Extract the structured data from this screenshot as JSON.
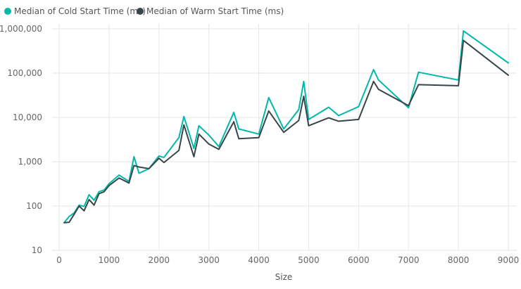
{
  "chart_data": {
    "type": "line",
    "title": "",
    "xlabel": "Size",
    "ylabel": "",
    "y_scale": "log",
    "xlim": [
      0,
      9000
    ],
    "ylim": [
      10,
      1000000
    ],
    "x_ticks": [
      0,
      1000,
      2000,
      3000,
      4000,
      5000,
      6000,
      7000,
      8000,
      9000
    ],
    "x_tick_labels": [
      "0",
      "1000",
      "2000",
      "3000",
      "4000",
      "5000",
      "6000",
      "7000",
      "8000",
      "9000"
    ],
    "y_ticks": [
      10,
      100,
      1000,
      10000,
      100000,
      1000000
    ],
    "y_tick_labels": [
      "10",
      "100",
      "1,000",
      "10,000",
      "100,000",
      "1,000,000"
    ],
    "grid": true,
    "legend_position": "top-left",
    "series": [
      {
        "name": "Median of Cold Start Time (ms)",
        "color": "#01B8AA",
        "points": [
          [
            100,
            42
          ],
          [
            200,
            58
          ],
          [
            300,
            70
          ],
          [
            400,
            105
          ],
          [
            500,
            98
          ],
          [
            600,
            180
          ],
          [
            700,
            135
          ],
          [
            800,
            210
          ],
          [
            900,
            230
          ],
          [
            1000,
            320
          ],
          [
            1100,
            400
          ],
          [
            1200,
            500
          ],
          [
            1400,
            360
          ],
          [
            1500,
            1300
          ],
          [
            1600,
            550
          ],
          [
            1800,
            700
          ],
          [
            2000,
            1350
          ],
          [
            2100,
            1250
          ],
          [
            2400,
            3500
          ],
          [
            2500,
            10500
          ],
          [
            2700,
            2000
          ],
          [
            2800,
            6500
          ],
          [
            3000,
            4000
          ],
          [
            3200,
            2200
          ],
          [
            3500,
            13000
          ],
          [
            3600,
            5500
          ],
          [
            4000,
            4200
          ],
          [
            4200,
            28000
          ],
          [
            4500,
            5500
          ],
          [
            4800,
            15000
          ],
          [
            4900,
            65000
          ],
          [
            5000,
            9000
          ],
          [
            5400,
            17000
          ],
          [
            5600,
            11000
          ],
          [
            6000,
            17500
          ],
          [
            6300,
            120000
          ],
          [
            6400,
            70000
          ],
          [
            7000,
            16500
          ],
          [
            7200,
            105000
          ],
          [
            8000,
            70000
          ],
          [
            8100,
            900000
          ],
          [
            9000,
            170000
          ]
        ]
      },
      {
        "name": "Median of Warm Start Time (ms)",
        "color": "#374649",
        "points": [
          [
            100,
            42
          ],
          [
            200,
            43
          ],
          [
            300,
            65
          ],
          [
            400,
            100
          ],
          [
            500,
            78
          ],
          [
            600,
            140
          ],
          [
            700,
            105
          ],
          [
            800,
            190
          ],
          [
            900,
            210
          ],
          [
            1000,
            290
          ],
          [
            1200,
            430
          ],
          [
            1400,
            330
          ],
          [
            1500,
            820
          ],
          [
            1600,
            760
          ],
          [
            1800,
            700
          ],
          [
            2000,
            1200
          ],
          [
            2100,
            960
          ],
          [
            2400,
            1800
          ],
          [
            2500,
            6800
          ],
          [
            2700,
            1300
          ],
          [
            2800,
            4200
          ],
          [
            3000,
            2500
          ],
          [
            3200,
            1900
          ],
          [
            3500,
            8000
          ],
          [
            3600,
            3300
          ],
          [
            4000,
            3500
          ],
          [
            4200,
            14000
          ],
          [
            4500,
            4600
          ],
          [
            4800,
            8500
          ],
          [
            4900,
            30000
          ],
          [
            5000,
            6500
          ],
          [
            5400,
            9800
          ],
          [
            5600,
            8200
          ],
          [
            6000,
            9000
          ],
          [
            6300,
            65000
          ],
          [
            6400,
            43000
          ],
          [
            7000,
            18500
          ],
          [
            7200,
            55000
          ],
          [
            8000,
            52000
          ],
          [
            8100,
            550000
          ],
          [
            9000,
            90000
          ]
        ]
      }
    ]
  }
}
